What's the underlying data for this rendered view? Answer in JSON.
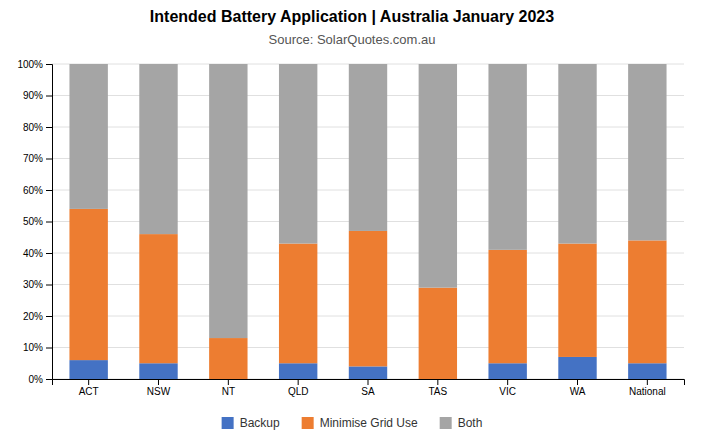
{
  "chart_data": {
    "type": "bar",
    "stacked": true,
    "title": "Intended Battery Application | Australia January 2023",
    "subtitle": "Source: SolarQuotes.com.au",
    "categories": [
      "ACT",
      "NSW",
      "NT",
      "QLD",
      "SA",
      "TAS",
      "VIC",
      "WA",
      "National"
    ],
    "series": [
      {
        "name": "Backup",
        "color": "#4472c4",
        "values": [
          6,
          5,
          0,
          5,
          4,
          0,
          5,
          7,
          5
        ]
      },
      {
        "name": "Minimise Grid Use",
        "color": "#ed7d31",
        "values": [
          48,
          41,
          13,
          38,
          43,
          29,
          36,
          36,
          39
        ]
      },
      {
        "name": "Both",
        "color": "#a5a5a5",
        "values": [
          46,
          54,
          87,
          57,
          53,
          71,
          59,
          57,
          56
        ]
      }
    ],
    "ylim": [
      0,
      100
    ],
    "yticks": [
      {
        "value": 0,
        "label": "0%"
      },
      {
        "value": 10,
        "label": "10%"
      },
      {
        "value": 20,
        "label": "20%"
      },
      {
        "value": 30,
        "label": "30%"
      },
      {
        "value": 40,
        "label": "40%"
      },
      {
        "value": 50,
        "label": "50%"
      },
      {
        "value": 60,
        "label": "60%"
      },
      {
        "value": 70,
        "label": "70%"
      },
      {
        "value": 80,
        "label": "80%"
      },
      {
        "value": 90,
        "label": "90%"
      },
      {
        "value": 100,
        "label": "100%"
      }
    ],
    "grid": true,
    "legend": "bottom"
  }
}
